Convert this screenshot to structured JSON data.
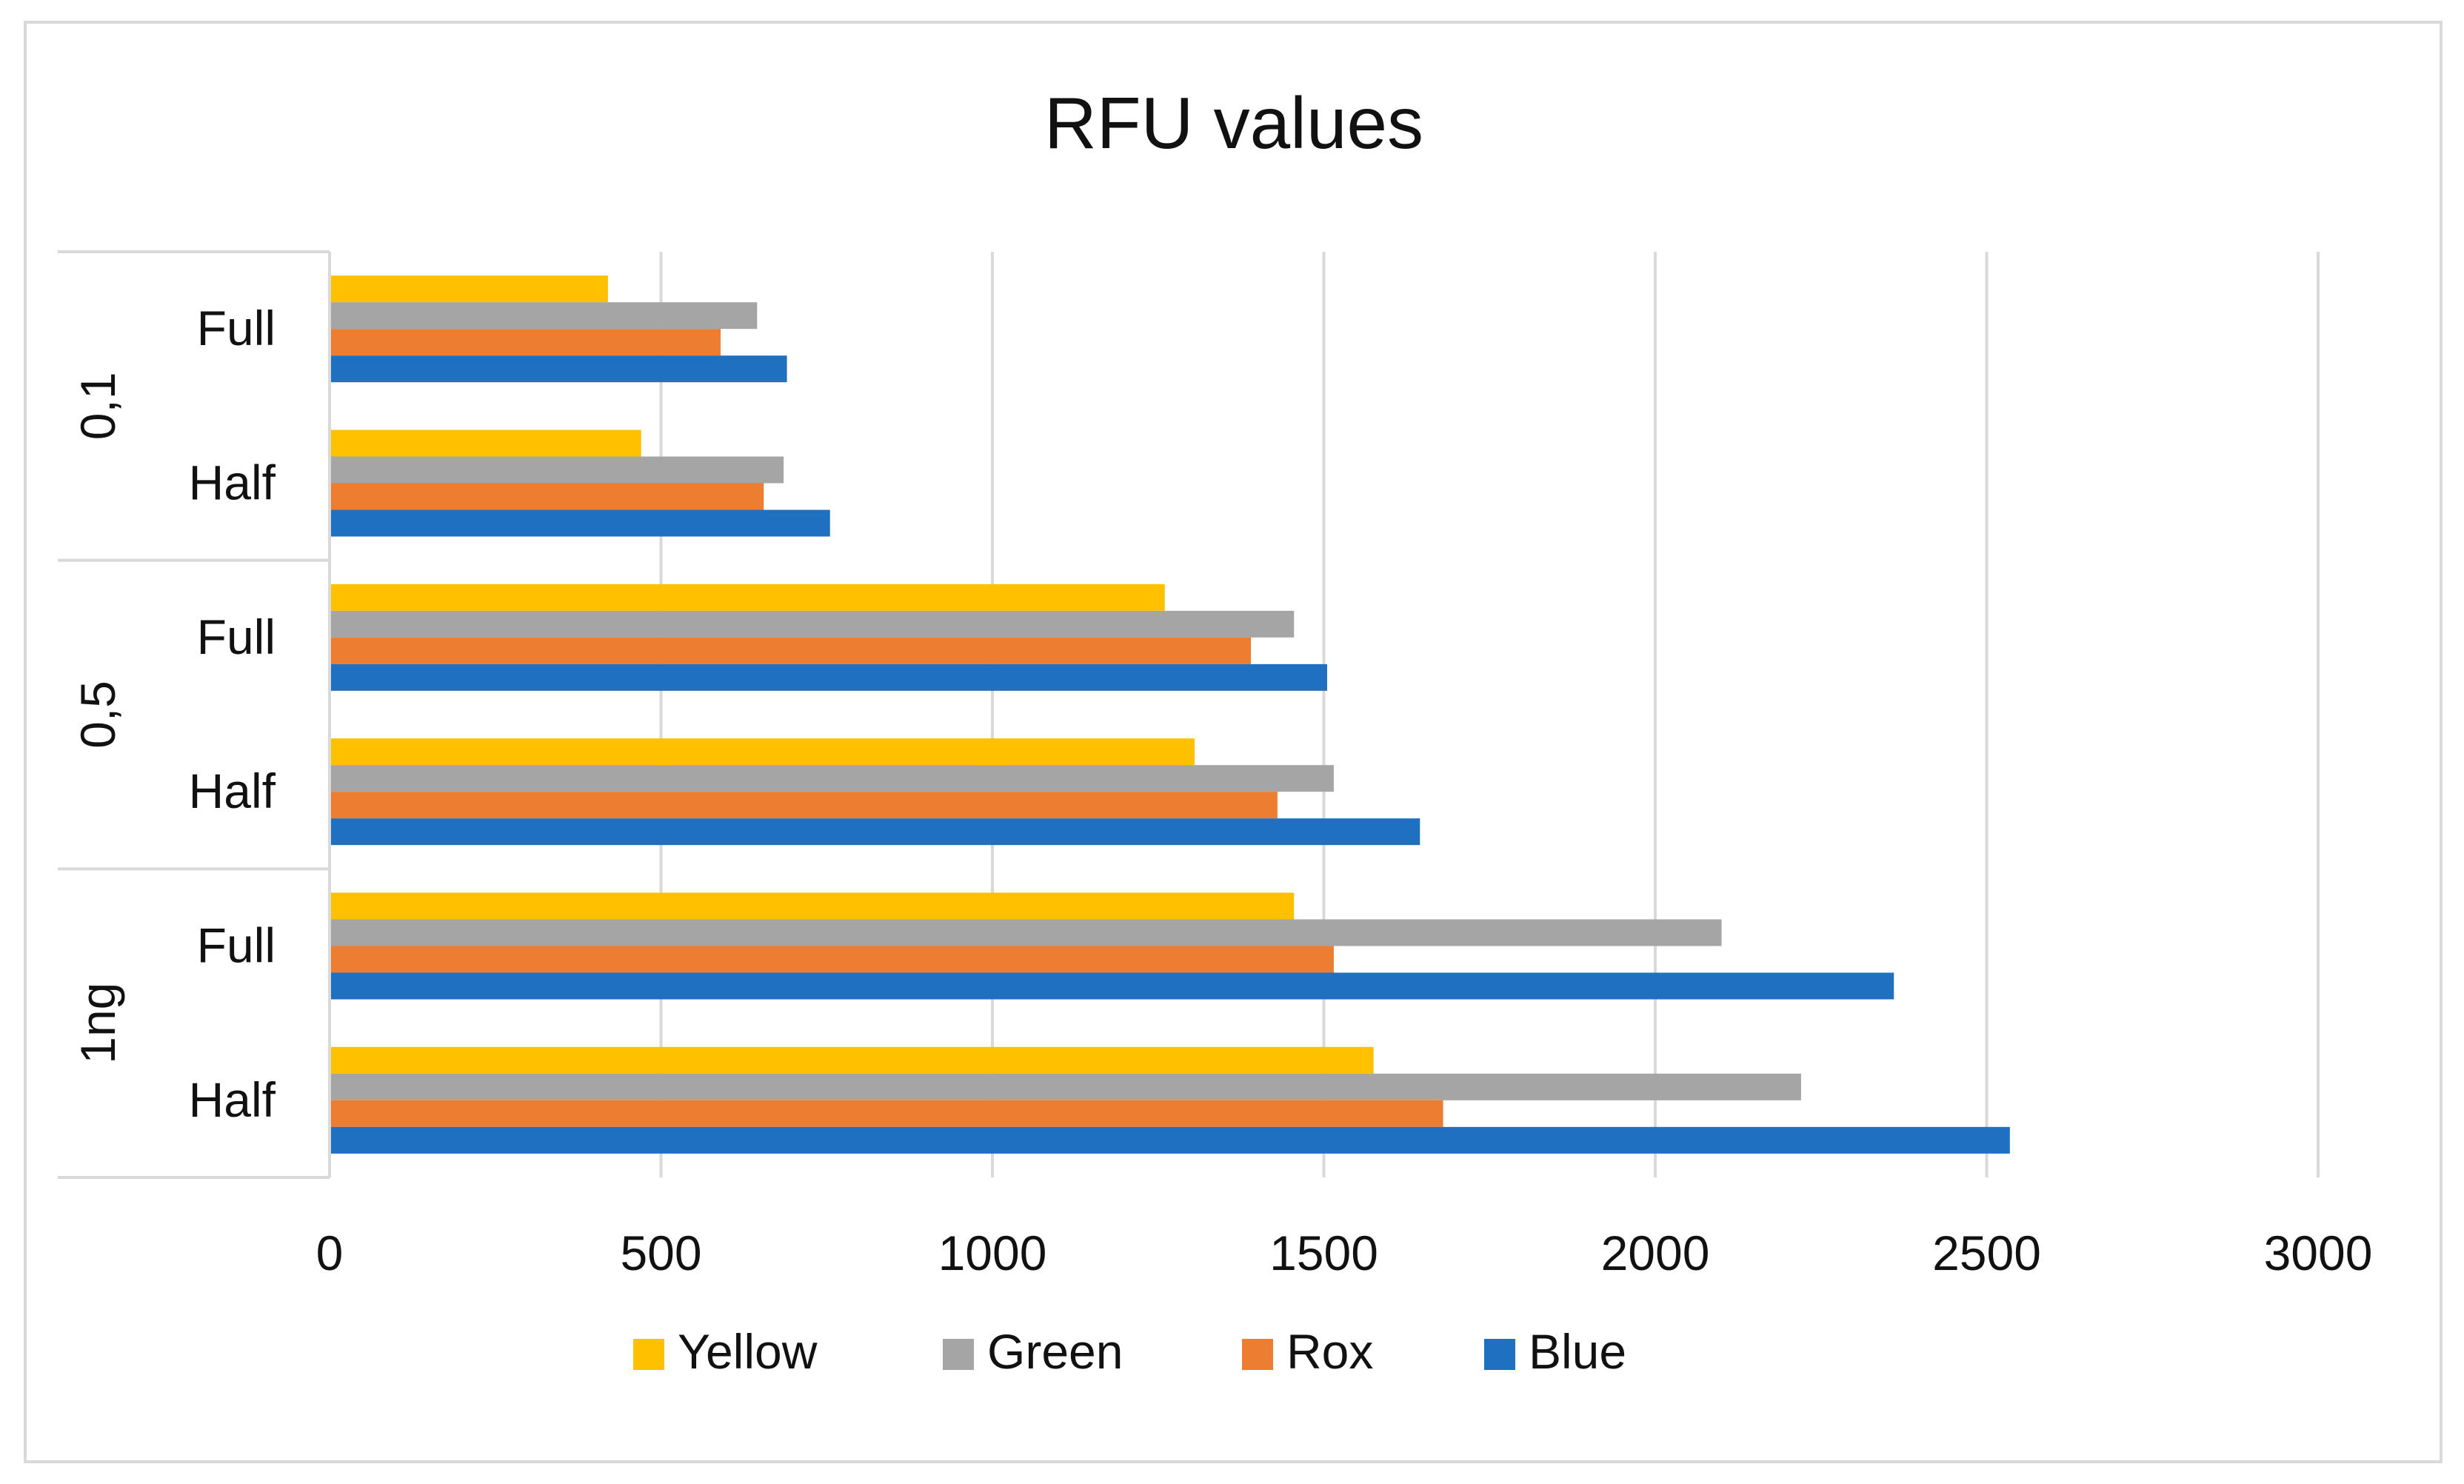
{
  "chart_data": {
    "type": "bar",
    "orientation": "horizontal",
    "title": "RFU values",
    "xlabel": "",
    "ylabel": "",
    "xlim": [
      0,
      3000
    ],
    "x_ticks": [
      0,
      500,
      1000,
      1500,
      2000,
      2500,
      3000
    ],
    "grid": true,
    "legend_position": "bottom",
    "groups": [
      {
        "label": "0,1",
        "categories": [
          "Full",
          "Half"
        ]
      },
      {
        "label": "0,5",
        "categories": [
          "Full",
          "Half"
        ]
      },
      {
        "label": "1ng",
        "categories": [
          "Full",
          "Half"
        ]
      }
    ],
    "series": [
      {
        "name": "Yellow",
        "color": "#FFC000",
        "values": [
          420,
          470,
          1260,
          1305,
          1455,
          1575
        ]
      },
      {
        "name": "Green",
        "color": "#A5A5A5",
        "values": [
          645,
          685,
          1455,
          1515,
          2100,
          2220
        ]
      },
      {
        "name": "Rox",
        "color": "#ED7D31",
        "values": [
          590,
          655,
          1390,
          1430,
          1515,
          1680
        ]
      },
      {
        "name": "Blue",
        "color": "#1F70C1",
        "values": [
          690,
          755,
          1505,
          1645,
          2360,
          2535
        ]
      }
    ]
  }
}
